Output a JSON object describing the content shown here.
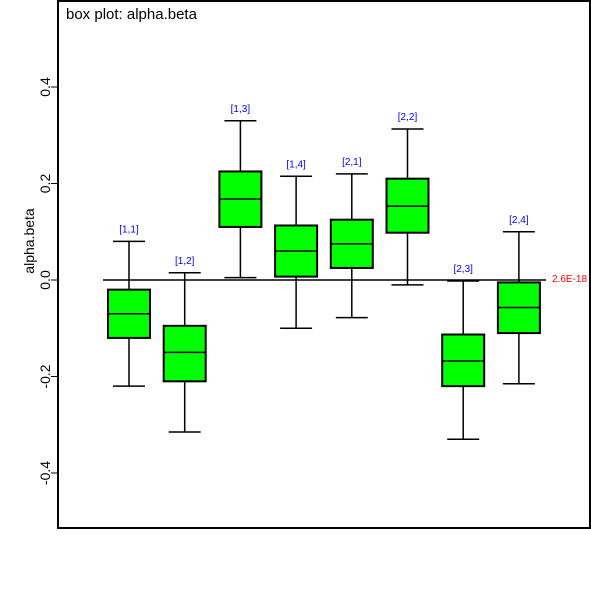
{
  "chart_data": {
    "type": "box",
    "title": "box plot: alpha.beta",
    "ylabel": "alpha.beta",
    "ylim": [
      -0.52,
      0.58
    ],
    "yticks": [
      -0.4,
      -0.2,
      0.0,
      0.2,
      0.4
    ],
    "ytick_labels": [
      "-0.4",
      "-0.2",
      "0.0",
      "0.2",
      "0.4"
    ],
    "reference": {
      "value": 0.0,
      "label": "2.6E-18",
      "color": "#ff0000"
    },
    "box_color": "#00ff00",
    "label_color": "#0000ff",
    "categories": [
      "[1,1]",
      "[1,2]",
      "[1,3]",
      "[1,4]",
      "[2,1]",
      "[2,2]",
      "[2,3]",
      "[2,4]"
    ],
    "boxes": [
      {
        "label": "[1,1]",
        "whisker_low": -0.22,
        "q1": -0.12,
        "median": -0.07,
        "q3": -0.02,
        "whisker_high": 0.08
      },
      {
        "label": "[1,2]",
        "whisker_low": -0.315,
        "q1": -0.21,
        "median": -0.15,
        "q3": -0.095,
        "whisker_high": 0.015
      },
      {
        "label": "[1,3]",
        "whisker_low": 0.005,
        "q1": 0.11,
        "median": 0.168,
        "q3": 0.225,
        "whisker_high": 0.33
      },
      {
        "label": "[1,4]",
        "whisker_low": -0.1,
        "q1": 0.007,
        "median": 0.06,
        "q3": 0.113,
        "whisker_high": 0.215
      },
      {
        "label": "[2,1]",
        "whisker_low": -0.078,
        "q1": 0.025,
        "median": 0.075,
        "q3": 0.125,
        "whisker_high": 0.22
      },
      {
        "label": "[2,2]",
        "whisker_low": -0.01,
        "q1": 0.098,
        "median": 0.153,
        "q3": 0.21,
        "whisker_high": 0.313
      },
      {
        "label": "[2,3]",
        "whisker_low": -0.33,
        "q1": -0.22,
        "median": -0.168,
        "q3": -0.113,
        "whisker_high": -0.002
      },
      {
        "label": "[2,4]",
        "whisker_low": -0.215,
        "q1": -0.11,
        "median": -0.057,
        "q3": -0.005,
        "whisker_high": 0.1
      }
    ],
    "grid": false,
    "legend": "none"
  }
}
